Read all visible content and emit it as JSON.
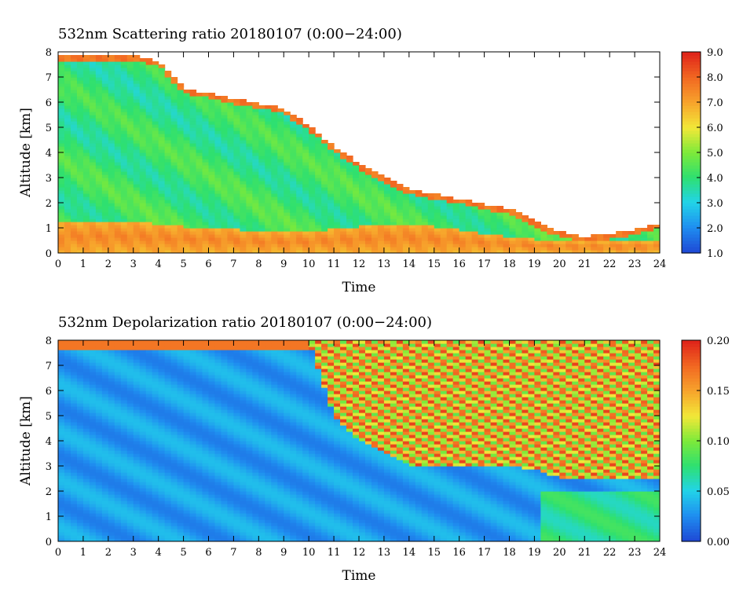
{
  "colors": {
    "colormap": [
      "#1f4bd6",
      "#1f8ff0",
      "#22d4e8",
      "#2ee070",
      "#7dea3a",
      "#f2e838",
      "#f7a52c",
      "#f26a22",
      "#e0261a"
    ],
    "background": "#ffffff"
  },
  "chart_data": [
    {
      "type": "heatmap",
      "title": "532nm Scattering ratio  20180107 (0:00−24:00)",
      "xlabel": "Time",
      "ylabel": "Altitude [km]",
      "xlim": [
        0,
        24
      ],
      "ylim": [
        0,
        8
      ],
      "x_ticks": [
        "0",
        "1",
        "2",
        "3",
        "4",
        "5",
        "6",
        "7",
        "8",
        "9",
        "10",
        "11",
        "12",
        "13",
        "14",
        "15",
        "16",
        "17",
        "18",
        "19",
        "20",
        "21",
        "22",
        "23",
        "24"
      ],
      "y_ticks": [
        "0",
        "1",
        "2",
        "3",
        "4",
        "5",
        "6",
        "7",
        "8"
      ],
      "colorbar": {
        "range": [
          1.0,
          9.0
        ],
        "ticks": [
          "1.0",
          "2.0",
          "3.0",
          "4.0",
          "5.0",
          "6.0",
          "7.0",
          "8.0",
          "9.0"
        ]
      },
      "time_h": [
        0,
        1,
        2,
        3,
        4,
        5,
        6,
        7,
        8,
        9,
        10,
        11,
        12,
        13,
        14,
        15,
        16,
        17,
        18,
        19,
        20,
        21,
        22,
        23,
        24
      ],
      "cloud_top_km": [
        7.8,
        7.8,
        7.8,
        7.8,
        7.6,
        6.5,
        6.3,
        6.1,
        5.9,
        5.7,
        5.0,
        4.2,
        3.5,
        3.0,
        2.5,
        2.3,
        2.1,
        1.9,
        1.7,
        1.2,
        0.8,
        0.6,
        0.7,
        0.9,
        1.1
      ],
      "boundary_layer_top_km": [
        1.2,
        1.2,
        1.2,
        1.2,
        1.1,
        1.0,
        1.0,
        0.9,
        0.8,
        0.8,
        0.8,
        0.9,
        1.0,
        1.1,
        1.1,
        1.0,
        0.9,
        0.7,
        0.6,
        0.5,
        0.4,
        0.4,
        0.4,
        0.4,
        0.4
      ],
      "cloud_ratio": 4.2,
      "boundary_layer_ratio": 7.5
    },
    {
      "type": "heatmap",
      "title": "532nm Depolarization ratio  20180107 (0:00−24:00)",
      "xlabel": "Time",
      "ylabel": "Altitude [km]",
      "xlim": [
        0,
        24
      ],
      "ylim": [
        0,
        8
      ],
      "x_ticks": [
        "0",
        "1",
        "2",
        "3",
        "4",
        "5",
        "6",
        "7",
        "8",
        "9",
        "10",
        "11",
        "12",
        "13",
        "14",
        "15",
        "16",
        "17",
        "18",
        "19",
        "20",
        "21",
        "22",
        "23",
        "24"
      ],
      "y_ticks": [
        "0",
        "1",
        "2",
        "3",
        "4",
        "5",
        "6",
        "7",
        "8"
      ],
      "colorbar": {
        "range": [
          0.0,
          0.2
        ],
        "ticks": [
          "0.00",
          "0.05",
          "0.10",
          "0.15",
          "0.20"
        ]
      },
      "time_h": [
        0,
        1,
        2,
        3,
        4,
        5,
        6,
        7,
        8,
        9,
        10,
        11,
        12,
        13,
        14,
        15,
        16,
        17,
        18,
        19,
        20,
        21,
        22,
        23,
        24
      ],
      "noise_region_base_km": [
        8.0,
        8.0,
        8.0,
        8.0,
        8.0,
        8.0,
        8.0,
        8.0,
        8.0,
        8.0,
        8.0,
        5.0,
        4.0,
        3.5,
        3.0,
        3.0,
        3.0,
        3.0,
        3.0,
        2.8,
        2.5,
        2.5,
        2.5,
        2.5,
        2.5
      ],
      "cloud_depol": 0.03,
      "noise_depol": 0.14
    }
  ]
}
